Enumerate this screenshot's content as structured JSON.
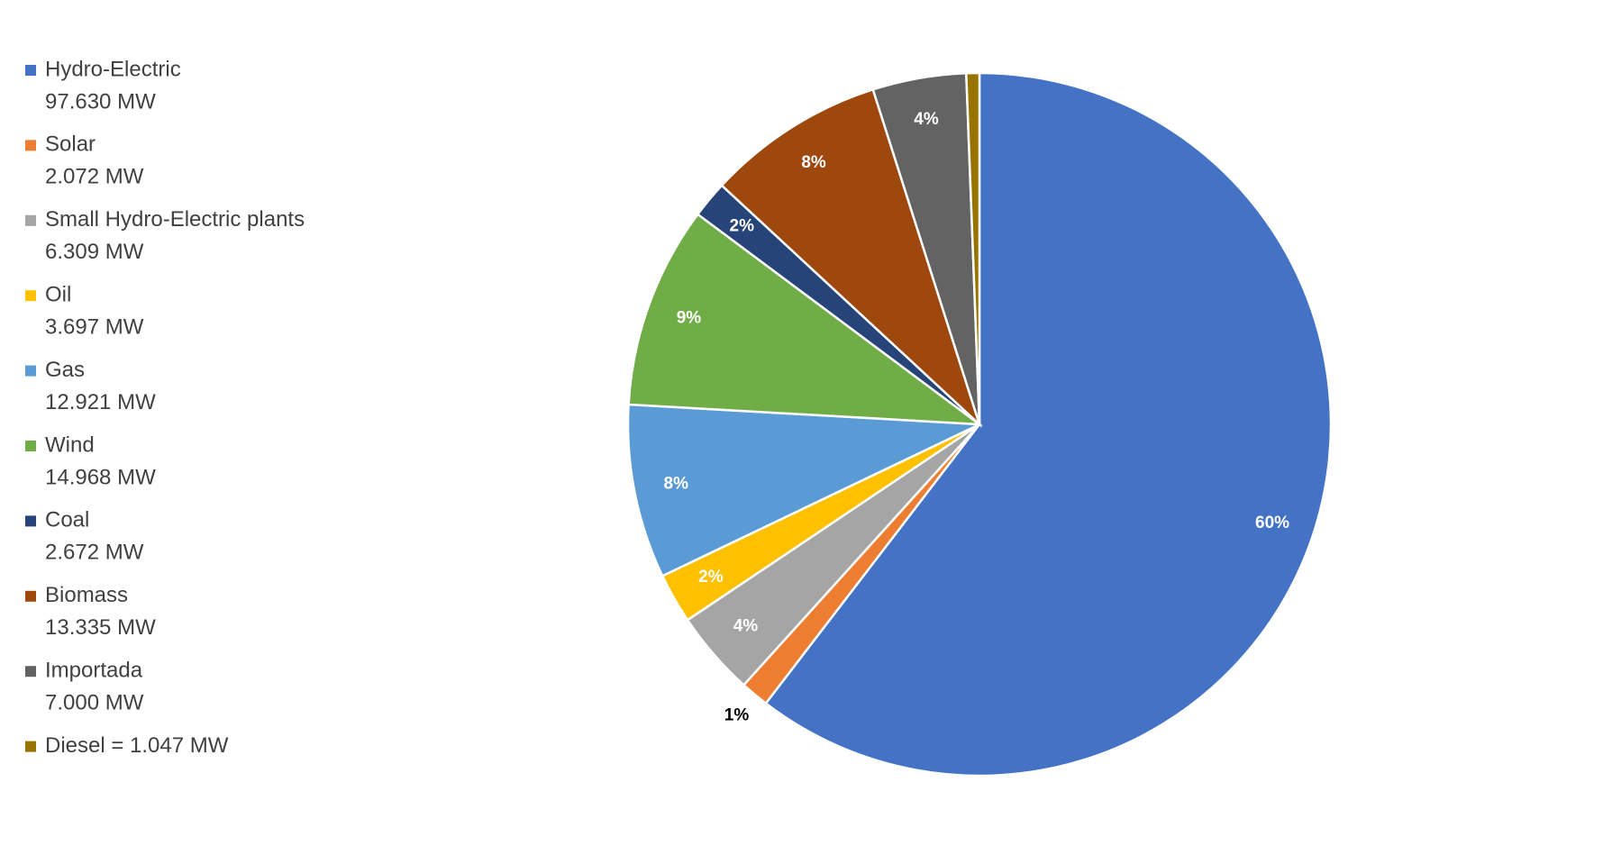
{
  "chart_data": {
    "type": "pie",
    "categories": [
      "Hydro-Electric",
      "Solar",
      "Small Hydro-Electric plants",
      "Oil",
      "Gas",
      "Wind",
      "Coal",
      "Biomass",
      "Importada",
      "Diesel = 1.047 MW"
    ],
    "legend_sublabels": [
      "97.630 MW",
      "2.072 MW",
      "6.309 MW",
      "3.697 MW",
      "12.921 MW",
      "14.968 MW",
      "2.672 MW",
      "13.335 MW",
      "7.000 MW",
      null
    ],
    "values": [
      60.4,
      1.3,
      3.9,
      2.3,
      8.0,
      9.3,
      1.7,
      8.2,
      4.3,
      0.6
    ],
    "value_labels": [
      "60%",
      "1%",
      "4%",
      "2%",
      "8%",
      "9%",
      "2%",
      "8%",
      "4%",
      null
    ],
    "colors": [
      "#4472c4",
      "#ed7d31",
      "#a5a5a5",
      "#ffc000",
      "#5b9bd5",
      "#70ad47",
      "#264478",
      "#9e480e",
      "#636363",
      "#997300"
    ],
    "legend": "left"
  }
}
